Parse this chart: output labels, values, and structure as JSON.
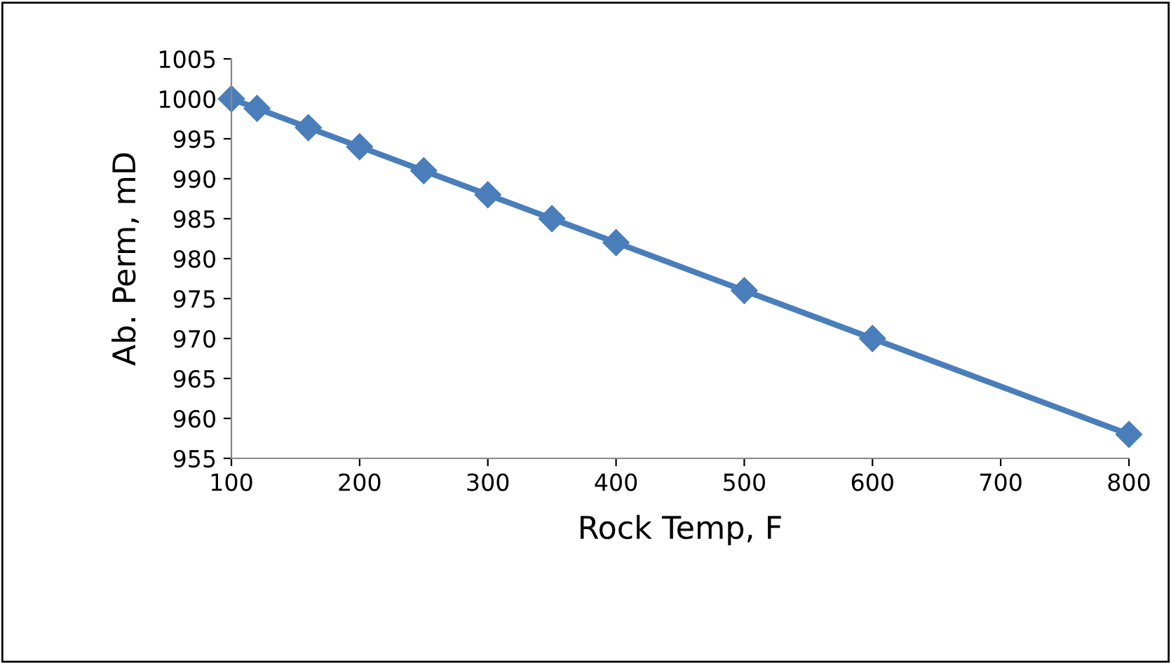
{
  "chart_data": {
    "type": "line",
    "xlabel": "Rock Temp, F",
    "ylabel": "Ab. Perm, mD",
    "x": [
      100,
      120,
      160,
      200,
      250,
      300,
      350,
      400,
      500,
      600,
      800
    ],
    "series": [
      {
        "color": "#4a7ebb",
        "values": [
          1000,
          998.8,
          996.4,
          994,
          991,
          988,
          985,
          982,
          976,
          970,
          958
        ]
      }
    ],
    "xlim": [
      100,
      800
    ],
    "xticks": [
      100,
      200,
      300,
      400,
      500,
      600,
      700,
      800
    ],
    "ylim": [
      955,
      1005
    ],
    "yticks": [
      955,
      960,
      965,
      970,
      975,
      980,
      985,
      990,
      995,
      1000,
      1005
    ],
    "marker": "diamond",
    "line_style": "solid",
    "grid": false,
    "legend": false
  }
}
